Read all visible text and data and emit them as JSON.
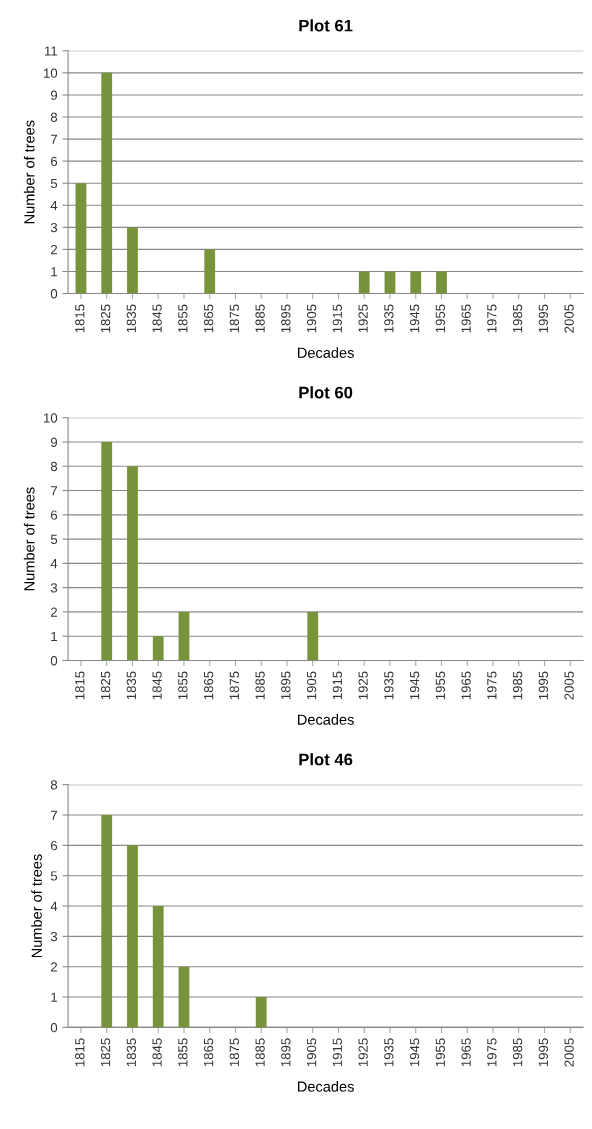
{
  "chart_data": [
    {
      "type": "bar",
      "title": "Plot 61",
      "xlabel": "Decades",
      "ylabel": "Number of trees",
      "categories": [
        "1815",
        "1825",
        "1835",
        "1845",
        "1855",
        "1865",
        "1875",
        "1885",
        "1895",
        "1905",
        "1915",
        "1925",
        "1935",
        "1945",
        "1955",
        "1965",
        "1975",
        "1985",
        "1995",
        "2005"
      ],
      "values": [
        5,
        10,
        3,
        0,
        0,
        2,
        0,
        0,
        0,
        0,
        0,
        1,
        1,
        1,
        1,
        0,
        0,
        0,
        0,
        0
      ],
      "color": "#77933c",
      "ylim": [
        0,
        11
      ],
      "yticks": [
        0,
        1,
        2,
        3,
        4,
        5,
        6,
        7,
        8,
        9,
        10,
        11
      ],
      "grid": "y",
      "legend": false
    },
    {
      "type": "bar",
      "title": "Plot 60",
      "xlabel": "Decades",
      "ylabel": "Number of trees",
      "categories": [
        "1815",
        "1825",
        "1835",
        "1845",
        "1855",
        "1865",
        "1875",
        "1885",
        "1895",
        "1905",
        "1915",
        "1925",
        "1935",
        "1945",
        "1955",
        "1965",
        "1975",
        "1985",
        "1995",
        "2005"
      ],
      "values": [
        0,
        9,
        8,
        1,
        2,
        0,
        0,
        0,
        0,
        2,
        0,
        0,
        0,
        0,
        0,
        0,
        0,
        0,
        0,
        0
      ],
      "color": "#77933c",
      "ylim": [
        0,
        10
      ],
      "yticks": [
        0,
        1,
        2,
        3,
        4,
        5,
        6,
        7,
        8,
        9,
        10
      ],
      "grid": "y",
      "legend": false
    },
    {
      "type": "bar",
      "title": "Plot 46",
      "xlabel": "Decades",
      "ylabel": "Number of trees",
      "categories": [
        "1815",
        "1825",
        "1835",
        "1845",
        "1855",
        "1865",
        "1875",
        "1885",
        "1895",
        "1905",
        "1915",
        "1925",
        "1935",
        "1945",
        "1955",
        "1965",
        "1975",
        "1985",
        "1995",
        "2005"
      ],
      "values": [
        0,
        7,
        6,
        4,
        2,
        0,
        0,
        1,
        0,
        0,
        0,
        0,
        0,
        0,
        0,
        0,
        0,
        0,
        0,
        0
      ],
      "color": "#77933c",
      "ylim": [
        0,
        8
      ],
      "yticks": [
        0,
        1,
        2,
        3,
        4,
        5,
        6,
        7,
        8
      ],
      "grid": "y",
      "legend": false
    }
  ]
}
